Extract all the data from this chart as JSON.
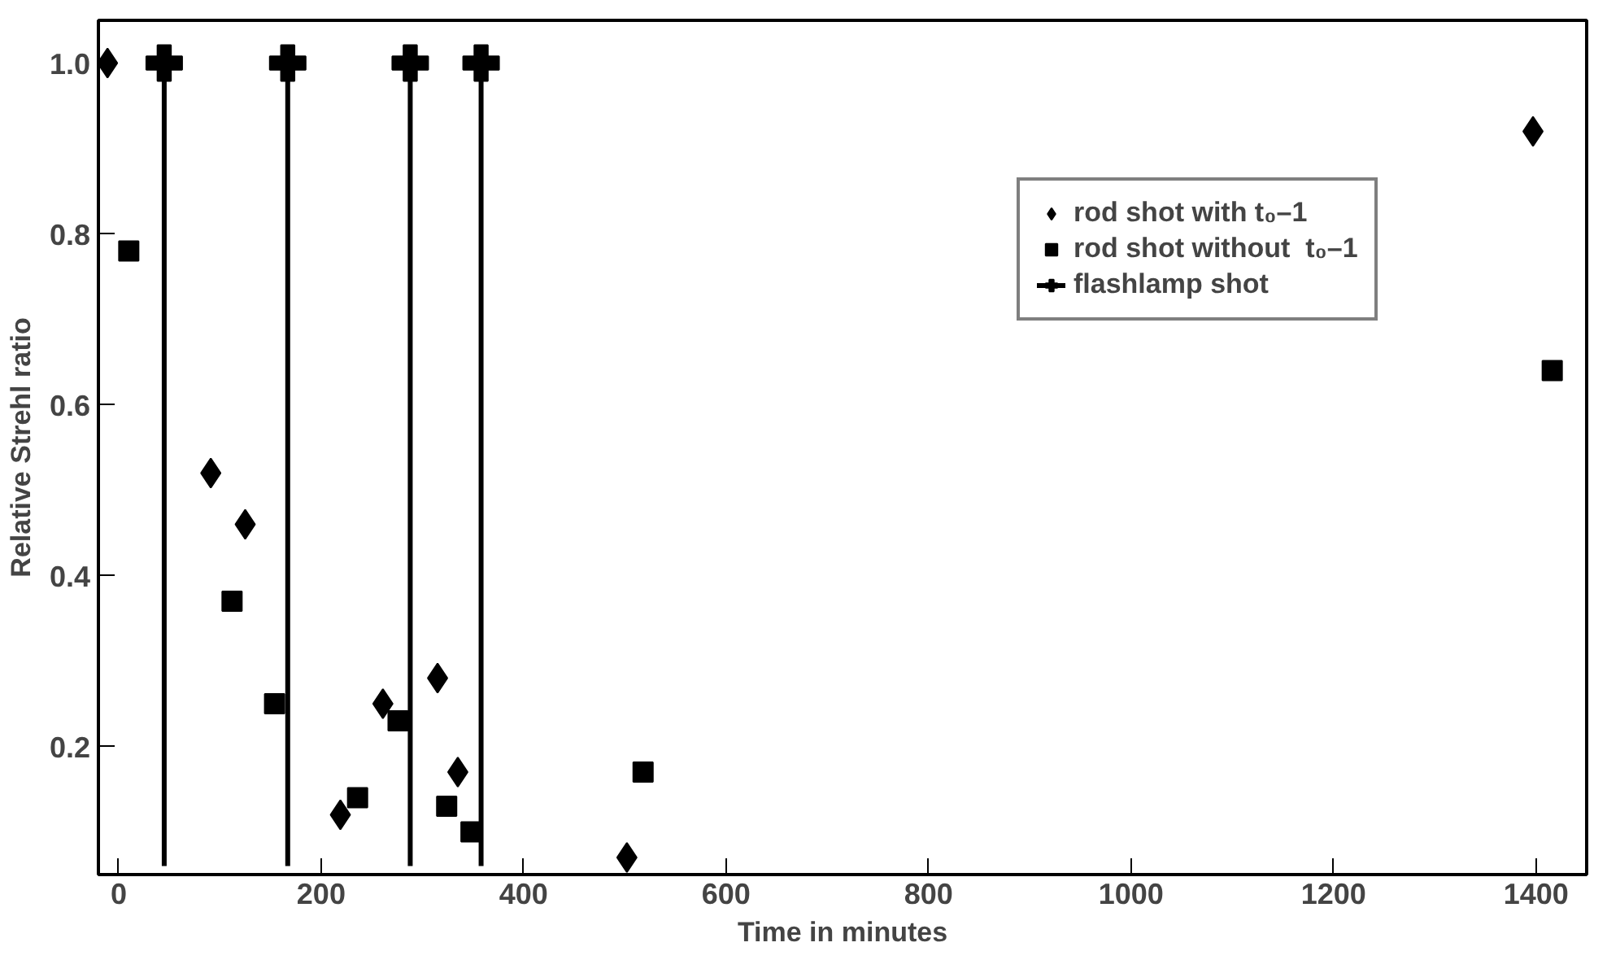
{
  "chart_data": {
    "type": "scatter",
    "xlabel": "Time in minutes",
    "ylabel": "Relative Strehl ratio",
    "xlim": [
      -20,
      1450
    ],
    "ylim": [
      0.05,
      1.05
    ],
    "xticks": [
      0,
      200,
      400,
      600,
      800,
      1000,
      1200,
      1400
    ],
    "yticks": [
      {
        "value": 0.2,
        "label": "0.2"
      },
      {
        "value": 0.4,
        "label": "0.4"
      },
      {
        "value": 0.6,
        "label": "0.6"
      },
      {
        "value": 0.8,
        "label": "0.8"
      },
      {
        "value": 1.0,
        "label": "1.0"
      }
    ],
    "grid": false,
    "legend": "top right",
    "series": [
      {
        "name": "rod shot with t₀–1",
        "color": "#000000",
        "marker": "diamond",
        "x": [
          -11,
          91,
          125,
          219,
          261,
          315,
          335,
          502,
          1397
        ],
        "values": [
          1.0,
          0.52,
          0.46,
          0.12,
          0.25,
          0.28,
          0.17,
          0.07,
          0.92
        ]
      },
      {
        "name": "rod shot without  t₀–1",
        "color": "#000000",
        "marker": "square",
        "x": [
          10,
          112,
          154,
          236,
          276,
          324,
          348,
          518,
          1416
        ],
        "values": [
          0.78,
          0.37,
          0.25,
          0.14,
          0.23,
          0.13,
          0.1,
          0.17,
          0.64
        ]
      },
      {
        "name": "flashlamp shot",
        "color": "#000000",
        "marker": "cross",
        "x": [
          45,
          167,
          288,
          358
        ],
        "values": [
          1.0,
          1.0,
          1.0,
          1.0
        ],
        "errors": [
          [
            0.06,
            1.0
          ],
          [
            0.06,
            1.0
          ],
          [
            0.06,
            1.0
          ],
          [
            0.06,
            1.0
          ]
        ]
      }
    ]
  }
}
